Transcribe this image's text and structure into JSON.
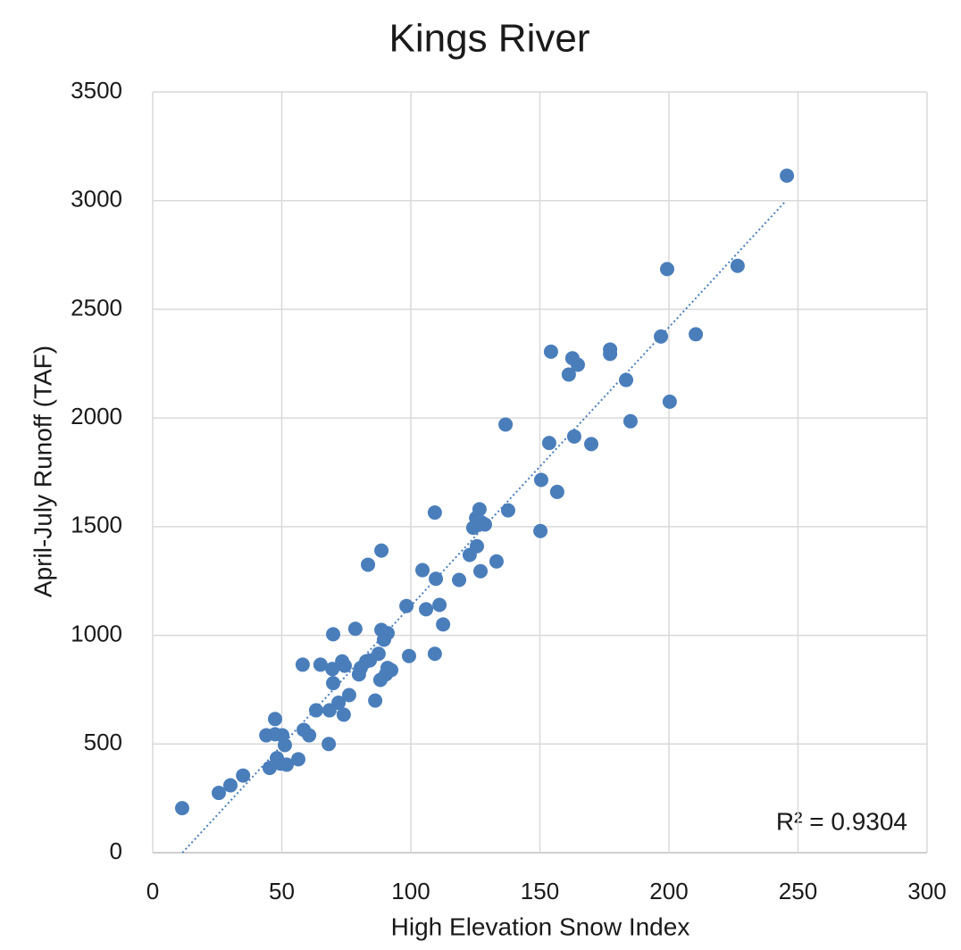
{
  "chart_data": {
    "type": "scatter",
    "title": "Kings River",
    "x_label": "High Elevation Snow Index",
    "y_label": "April-July Runoff (TAF)",
    "annotation": "R² = 0.9304",
    "color": "#4a7ebb",
    "grid": true,
    "xlim": [
      0,
      300
    ],
    "xticks": [
      0,
      50,
      100,
      150,
      200,
      250,
      300
    ],
    "ylim": [
      0,
      3500
    ],
    "yticks": [
      0,
      500,
      1000,
      1500,
      2000,
      2500,
      3000,
      3500
    ],
    "x": [
      11.4,
      25.6,
      30.1,
      35,
      44,
      47.4,
      47.4,
      50.2,
      51.2,
      45.3,
      48.1,
      49.5,
      51.9,
      56.4,
      58.5,
      60.6,
      58.1,
      63.3,
      65,
      68.2,
      68.5,
      69.6,
      69.9,
      69.9,
      72,
      73.4,
      74,
      74.4,
      76.1,
      78.5,
      79.9,
      80.6,
      82.7,
      83.4,
      84.1,
      86.2,
      87.5,
      88.6,
      88.2,
      88.6,
      89.6,
      90.3,
      91,
      91,
      92.4,
      98.3,
      99.3,
      104.5,
      105.9,
      109.3,
      109.3,
      109.7,
      111.1,
      112.5,
      118.7,
      122.8,
      124.2,
      125.3,
      125.6,
      126.6,
      127,
      127.3,
      128.7,
      133.2,
      136.7,
      137.7,
      150.2,
      150.5,
      153.6,
      154.3,
      156.7,
      161.2,
      162.6,
      163.3,
      164.7,
      169.9,
      177.2,
      177.2,
      183.4,
      185.1,
      196.9,
      199.3,
      200.3,
      210.4,
      226.6,
      245.7
    ],
    "values": [
      205,
      275,
      310,
      355,
      540,
      615,
      545,
      540,
      495,
      390,
      435,
      410,
      405,
      430,
      565,
      540,
      865,
      655,
      865,
      500,
      655,
      845,
      1005,
      780,
      690,
      880,
      635,
      860,
      725,
      1030,
      820,
      850,
      880,
      1325,
      885,
      700,
      915,
      1390,
      795,
      1025,
      980,
      820,
      850,
      1010,
      840,
      1135,
      905,
      1300,
      1120,
      915,
      1565,
      1260,
      1140,
      1050,
      1255,
      1370,
      1495,
      1540,
      1410,
      1580,
      1295,
      1520,
      1510,
      1340,
      1970,
      1575,
      1480,
      1715,
      1885,
      2305,
      1660,
      2200,
      2275,
      1915,
      2245,
      1880,
      2315,
      2295,
      2175,
      1985,
      2375,
      2685,
      2075,
      2385,
      2700,
      3115
    ],
    "trendline": {
      "x": [
        11.5,
        245
      ],
      "values": [
        0,
        2995
      ]
    }
  }
}
